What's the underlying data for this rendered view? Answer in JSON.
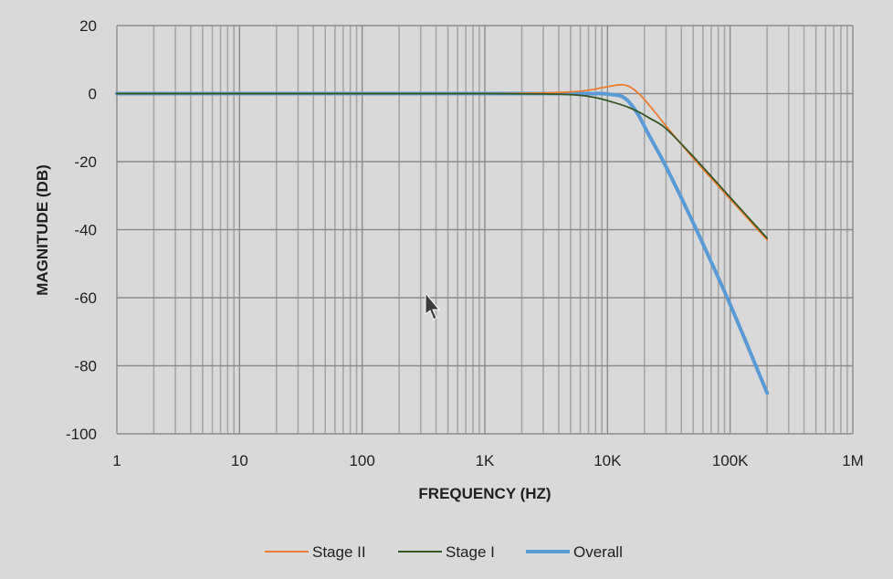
{
  "chart_data": {
    "type": "line",
    "xscale": "log",
    "xlim": [
      1,
      1000000
    ],
    "ylim": [
      -100,
      20
    ],
    "xlabel": "FREQUENCY (HZ)",
    "ylabel": "MAGNITUDE (DB)",
    "grid": true,
    "legend_position": "bottom",
    "x_ticks": [
      {
        "value": 1,
        "label": "1"
      },
      {
        "value": 10,
        "label": "10"
      },
      {
        "value": 100,
        "label": "100"
      },
      {
        "value": 1000,
        "label": "1K"
      },
      {
        "value": 10000,
        "label": "10K"
      },
      {
        "value": 100000,
        "label": "100K"
      },
      {
        "value": 1000000,
        "label": "1M"
      }
    ],
    "y_ticks": [
      {
        "value": 20,
        "label": "20"
      },
      {
        "value": 0,
        "label": "0"
      },
      {
        "value": -20,
        "label": "-20"
      },
      {
        "value": -40,
        "label": "-40"
      },
      {
        "value": -60,
        "label": "-60"
      },
      {
        "value": -80,
        "label": "-80"
      },
      {
        "value": -100,
        "label": "-100"
      }
    ],
    "series": [
      {
        "name": "Stage II",
        "color": "#ed7d31",
        "x": [
          1,
          100,
          1000,
          3000,
          5000,
          7000,
          9000,
          11000,
          13000,
          15000,
          18000,
          22000,
          30000,
          50000,
          100000,
          200000
        ],
        "y": [
          0,
          0,
          0,
          0.2,
          0.5,
          1.0,
          1.7,
          2.3,
          2.6,
          2.1,
          0,
          -3.5,
          -9.5,
          -19,
          -31,
          -43
        ]
      },
      {
        "name": "Stage I",
        "color": "#375623",
        "x": [
          1,
          100,
          1000,
          3000,
          5000,
          7000,
          9000,
          11000,
          13000,
          15000,
          18000,
          22000,
          30000,
          50000,
          100000,
          200000
        ],
        "y": [
          0,
          0,
          0,
          -0.1,
          -0.3,
          -0.8,
          -1.6,
          -2.5,
          -3.3,
          -4.1,
          -5.4,
          -7.2,
          -10.3,
          -18.5,
          -30.5,
          -42.5
        ]
      },
      {
        "name": "Overall",
        "color": "#5b9bd5",
        "x": [
          1,
          100,
          1000,
          3000,
          5000,
          7000,
          9000,
          11000,
          13000,
          15000,
          18000,
          22000,
          30000,
          50000,
          100000,
          200000
        ],
        "y": [
          0,
          0,
          0,
          0,
          0,
          0,
          0,
          -0.3,
          -0.8,
          -2.5,
          -6.5,
          -12.5,
          -21.5,
          -38,
          -62,
          -88
        ]
      }
    ]
  }
}
